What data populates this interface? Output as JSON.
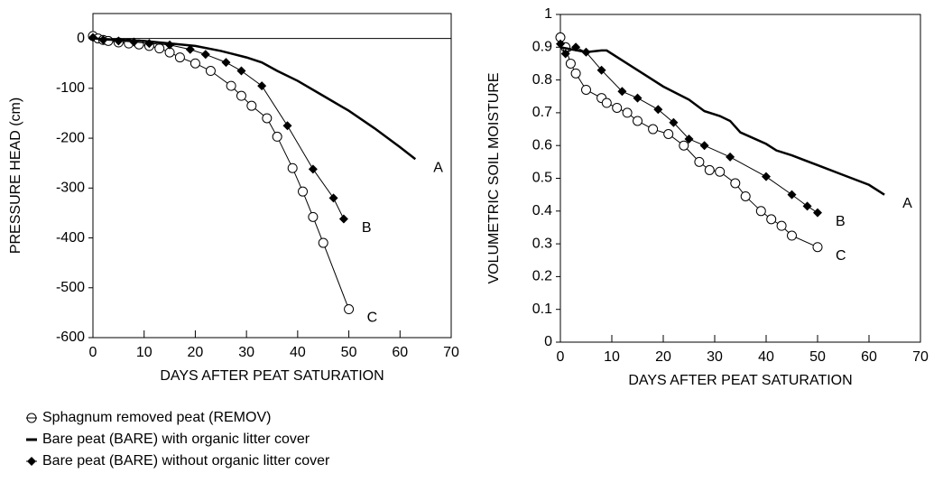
{
  "chart_data": [
    {
      "type": "line",
      "xlabel": "DAYS AFTER PEAT SATURATION",
      "ylabel": "PRESSURE HEAD (cm)",
      "xlim": [
        0,
        70
      ],
      "xticks": [
        0,
        10,
        20,
        30,
        40,
        50,
        60,
        70
      ],
      "ylim": [
        -600,
        50
      ],
      "yticks": [
        -600,
        -500,
        -400,
        -300,
        -200,
        -100,
        0
      ],
      "hline": 0,
      "series": [
        {
          "name": "Sphagnum removed peat (REMOV)",
          "label": "C",
          "marker": "circle",
          "color": "#000000",
          "x": [
            0,
            1,
            2,
            3,
            5,
            7,
            9,
            11,
            13,
            15,
            17,
            20,
            23,
            27,
            29,
            31,
            34,
            36,
            39,
            41,
            43,
            45,
            50
          ],
          "values": [
            5,
            0,
            -3,
            -5,
            -8,
            -10,
            -12,
            -15,
            -20,
            -28,
            -38,
            -50,
            -65,
            -95,
            -115,
            -135,
            -160,
            -197,
            -260,
            -307,
            -358,
            -410,
            -543
          ]
        },
        {
          "name": "Bare peat (BARE) with organic litter cover",
          "label": "A",
          "marker": "none",
          "color": "#000000",
          "x": [
            0,
            10,
            20,
            25,
            30,
            33,
            36,
            40,
            45,
            50,
            55,
            60,
            63
          ],
          "values": [
            0,
            -5,
            -15,
            -25,
            -38,
            -48,
            -65,
            -85,
            -115,
            -145,
            -180,
            -218,
            -242
          ]
        },
        {
          "name": "Bare peat (BARE) without organic litter cover",
          "label": "B",
          "marker": "diamond",
          "color": "#000000",
          "x": [
            0,
            2,
            5,
            8,
            11,
            15,
            19,
            22,
            26,
            29,
            33,
            38,
            43,
            47,
            49
          ],
          "values": [
            2,
            -3,
            -5,
            -7,
            -10,
            -13,
            -22,
            -32,
            -48,
            -65,
            -95,
            -175,
            -262,
            -320,
            -362
          ]
        }
      ]
    },
    {
      "type": "line",
      "xlabel": "DAYS AFTER PEAT SATURATION",
      "ylabel": "VOLUMETRIC SOIL MOISTURE",
      "xlim": [
        0,
        70
      ],
      "xticks": [
        0,
        10,
        20,
        30,
        40,
        50,
        60,
        70
      ],
      "ylim": [
        0,
        1
      ],
      "yticks": [
        0,
        0.1,
        0.2,
        0.3,
        0.4,
        0.5,
        0.6,
        0.7,
        0.8,
        0.9,
        1
      ],
      "series": [
        {
          "label": "C",
          "marker": "circle",
          "color": "#000000",
          "x": [
            0,
            1,
            2,
            3,
            5,
            8,
            9,
            11,
            13,
            15,
            18,
            21,
            24,
            27,
            29,
            31,
            34,
            36,
            39,
            41,
            43,
            45,
            50
          ],
          "values": [
            0.93,
            0.9,
            0.85,
            0.82,
            0.77,
            0.745,
            0.73,
            0.715,
            0.7,
            0.675,
            0.65,
            0.635,
            0.6,
            0.55,
            0.525,
            0.52,
            0.485,
            0.445,
            0.4,
            0.375,
            0.355,
            0.325,
            0.29
          ]
        },
        {
          "label": "A",
          "marker": "none",
          "color": "#000000",
          "x": [
            0,
            5,
            8,
            9,
            12,
            16,
            20,
            25,
            28,
            31,
            33,
            35,
            40,
            42,
            45,
            50,
            55,
            60,
            63
          ],
          "values": [
            0.9,
            0.885,
            0.89,
            0.89,
            0.86,
            0.82,
            0.78,
            0.74,
            0.705,
            0.69,
            0.675,
            0.64,
            0.605,
            0.585,
            0.57,
            0.54,
            0.51,
            0.48,
            0.45
          ]
        },
        {
          "label": "B",
          "marker": "diamond",
          "color": "#000000",
          "x": [
            0,
            1,
            3,
            5,
            8,
            12,
            15,
            19,
            22,
            25,
            28,
            33,
            40,
            45,
            48,
            50
          ],
          "values": [
            0.91,
            0.88,
            0.9,
            0.885,
            0.83,
            0.765,
            0.745,
            0.71,
            0.67,
            0.62,
            0.6,
            0.565,
            0.505,
            0.45,
            0.415,
            0.395
          ]
        }
      ]
    }
  ]
}
